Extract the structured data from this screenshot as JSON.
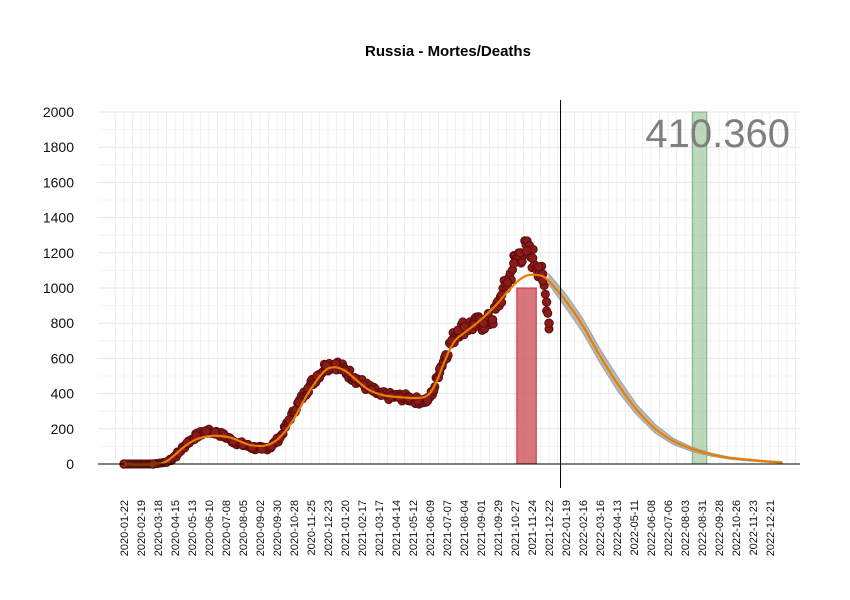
{
  "chart_data": {
    "type": "scatter",
    "title": "Russia - Mortes/Deaths",
    "xlabel": "",
    "ylabel": "",
    "ylim": [
      0,
      2000
    ],
    "yticks": [
      0,
      200,
      400,
      600,
      800,
      1000,
      1200,
      1400,
      1600,
      1800,
      2000
    ],
    "x_range": [
      "2020-01-22",
      "2023-01-20"
    ],
    "xticks": [
      "2020-01-22",
      "2020-02-19",
      "2020-03-18",
      "2020-04-15",
      "2020-05-13",
      "2020-06-10",
      "2020-07-08",
      "2020-08-05",
      "2020-09-02",
      "2020-09-30",
      "2020-10-28",
      "2020-11-25",
      "2020-12-23",
      "2021-01-20",
      "2021-02-17",
      "2021-03-17",
      "2021-04-14",
      "2021-05-12",
      "2021-06-09",
      "2021-07-07",
      "2021-08-04",
      "2021-09-01",
      "2021-09-29",
      "2021-10-27",
      "2021-11-24",
      "2021-12-22",
      "2022-01-19",
      "2022-02-16",
      "2022-03-16",
      "2022-04-13",
      "2022-05-11",
      "2022-06-08",
      "2022-07-06",
      "2022-08-03",
      "2022-08-31",
      "2022-09-28",
      "2022-10-26",
      "2022-11-23",
      "2022-12-21"
    ],
    "grid": true,
    "annotation": "410.360",
    "colors": {
      "points": "#8b1a1a",
      "point_outline": "#5a0d0d",
      "smooth_line": "#e67e00",
      "forecast_band": "#b0b0b0",
      "red_band": "#d0545c",
      "green_band": "#8fc08f",
      "grid": "#e6e6e6"
    },
    "red_band": {
      "x": [
        "2021-10-30",
        "2021-12-01"
      ],
      "y": [
        0,
        1000
      ]
    },
    "green_band": {
      "x": [
        "2022-08-15",
        "2022-09-08"
      ],
      "y": [
        0,
        2000
      ]
    },
    "vertical_line_x": "2022-01-10",
    "observed_series": {
      "name": "",
      "x": [
        "2020-01-22",
        "2020-03-10",
        "2020-04-01",
        "2020-04-20",
        "2020-05-05",
        "2020-05-20",
        "2020-06-05",
        "2020-06-20",
        "2020-07-05",
        "2020-07-20",
        "2020-08-05",
        "2020-08-20",
        "2020-09-05",
        "2020-09-20",
        "2020-10-05",
        "2020-10-20",
        "2020-11-05",
        "2020-11-20",
        "2020-12-05",
        "2020-12-20",
        "2021-01-05",
        "2021-01-20",
        "2021-02-05",
        "2021-02-20",
        "2021-03-05",
        "2021-03-20",
        "2021-04-05",
        "2021-04-20",
        "2021-05-05",
        "2021-05-20",
        "2021-06-05",
        "2021-06-15",
        "2021-06-25",
        "2021-07-05",
        "2021-07-15",
        "2021-07-25",
        "2021-08-05",
        "2021-08-20",
        "2021-09-05",
        "2021-09-20",
        "2021-10-05",
        "2021-10-15",
        "2021-10-25",
        "2021-11-05",
        "2021-11-15",
        "2021-11-25",
        "2021-12-05",
        "2021-12-12",
        "2021-12-18",
        "2021-12-22"
      ],
      "y": [
        0,
        0,
        10,
        60,
        120,
        160,
        185,
        180,
        160,
        130,
        110,
        95,
        85,
        100,
        150,
        250,
        350,
        430,
        500,
        560,
        570,
        530,
        490,
        450,
        420,
        390,
        385,
        380,
        375,
        360,
        360,
        420,
        540,
        620,
        700,
        760,
        780,
        790,
        800,
        820,
        960,
        1030,
        1140,
        1200,
        1210,
        1170,
        1120,
        1040,
        920,
        800
      ]
    },
    "smooth_series": {
      "name": "",
      "x": [
        "2020-01-22",
        "2020-03-10",
        "2020-04-01",
        "2020-05-01",
        "2020-05-20",
        "2020-06-15",
        "2020-07-15",
        "2020-08-15",
        "2020-09-10",
        "2020-10-01",
        "2020-10-25",
        "2020-11-20",
        "2020-12-15",
        "2021-01-01",
        "2021-01-20",
        "2021-02-10",
        "2021-03-01",
        "2021-03-25",
        "2021-04-20",
        "2021-05-15",
        "2021-06-05",
        "2021-06-20",
        "2021-07-05",
        "2021-07-20",
        "2021-08-10",
        "2021-09-01",
        "2021-09-25",
        "2021-10-15",
        "2021-11-01",
        "2021-11-15",
        "2021-12-01",
        "2021-12-15",
        "2022-01-01",
        "2022-01-20",
        "2022-02-15",
        "2022-03-15",
        "2022-04-15",
        "2022-05-15",
        "2022-06-15",
        "2022-07-15",
        "2022-08-15",
        "2022-09-15",
        "2022-10-15",
        "2022-11-15",
        "2022-12-15",
        "2023-01-10"
      ],
      "y": [
        0,
        0,
        15,
        100,
        140,
        160,
        150,
        110,
        105,
        140,
        240,
        400,
        520,
        550,
        530,
        470,
        420,
        390,
        380,
        375,
        390,
        470,
        600,
        700,
        760,
        820,
        900,
        980,
        1040,
        1070,
        1075,
        1060,
        1000,
        920,
        790,
        620,
        450,
        310,
        200,
        130,
        85,
        55,
        35,
        25,
        15,
        10
      ]
    },
    "forecast_band_series": {
      "name": "",
      "x": [
        "2021-12-22",
        "2022-01-20",
        "2022-02-15",
        "2022-03-15",
        "2022-04-15",
        "2022-05-15",
        "2022-06-15",
        "2022-07-15",
        "2022-08-15",
        "2022-09-15",
        "2022-10-15",
        "2022-11-15",
        "2022-12-15",
        "2023-01-10"
      ],
      "upper": [
        1080,
        960,
        830,
        660,
        490,
        340,
        225,
        145,
        95,
        62,
        40,
        28,
        18,
        12
      ],
      "lower": [
        1020,
        880,
        750,
        580,
        410,
        280,
        175,
        110,
        70,
        45,
        28,
        18,
        10,
        6
      ]
    }
  }
}
